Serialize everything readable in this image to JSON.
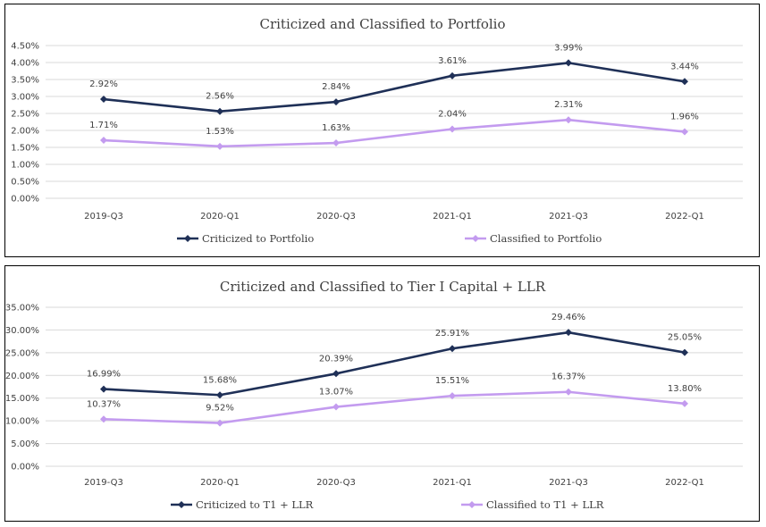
{
  "chart_data": [
    {
      "type": "line",
      "title": "Criticized and Classified to Portfolio",
      "categories": [
        "2019-Q3",
        "2020-Q1",
        "2020-Q3",
        "2021-Q1",
        "2021-Q3",
        "2022-Q1"
      ],
      "series": [
        {
          "name": "Criticized to Portfolio",
          "values": [
            2.92,
            2.56,
            2.84,
            3.61,
            3.99,
            3.44
          ],
          "labels": [
            "2.92%",
            "2.56%",
            "2.84%",
            "3.61%",
            "3.99%",
            "3.44%"
          ],
          "color": "#1f3057",
          "marker": "diamond"
        },
        {
          "name": "Classified to Portfolio",
          "values": [
            1.71,
            1.53,
            1.63,
            2.04,
            2.31,
            1.96
          ],
          "labels": [
            "1.71%",
            "1.53%",
            "1.63%",
            "2.04%",
            "2.31%",
            "1.96%"
          ],
          "color": "#c39bef",
          "marker": "diamond"
        }
      ],
      "ylim": [
        0,
        4.5
      ],
      "yticks": [
        "0.00%",
        "0.50%",
        "1.00%",
        "1.50%",
        "2.00%",
        "2.50%",
        "3.00%",
        "3.50%",
        "4.00%",
        "4.50%"
      ],
      "grid": true,
      "legend": "bottom"
    },
    {
      "type": "line",
      "title": "Criticized and Classified to Tier I Capital + LLR",
      "categories": [
        "2019-Q3",
        "2020-Q1",
        "2020-Q3",
        "2021-Q1",
        "2021-Q3",
        "2022-Q1"
      ],
      "series": [
        {
          "name": "Criticized to T1 + LLR",
          "values": [
            16.99,
            15.68,
            20.39,
            25.91,
            29.46,
            25.05
          ],
          "labels": [
            "16.99%",
            "15.68%",
            "20.39%",
            "25.91%",
            "29.46%",
            "25.05%"
          ],
          "color": "#1f3057",
          "marker": "diamond"
        },
        {
          "name": "Classified to T1 + LLR",
          "values": [
            10.37,
            9.52,
            13.07,
            15.51,
            16.37,
            13.8
          ],
          "labels": [
            "10.37%",
            "9.52%",
            "13.07%",
            "15.51%",
            "16.37%",
            "13.80%"
          ],
          "color": "#c39bef",
          "marker": "diamond"
        }
      ],
      "ylim": [
        0,
        35
      ],
      "yticks": [
        "0.00%",
        "5.00%",
        "10.00%",
        "15.00%",
        "20.00%",
        "25.00%",
        "30.00%",
        "35.00%"
      ],
      "grid": true,
      "legend": "bottom"
    }
  ]
}
